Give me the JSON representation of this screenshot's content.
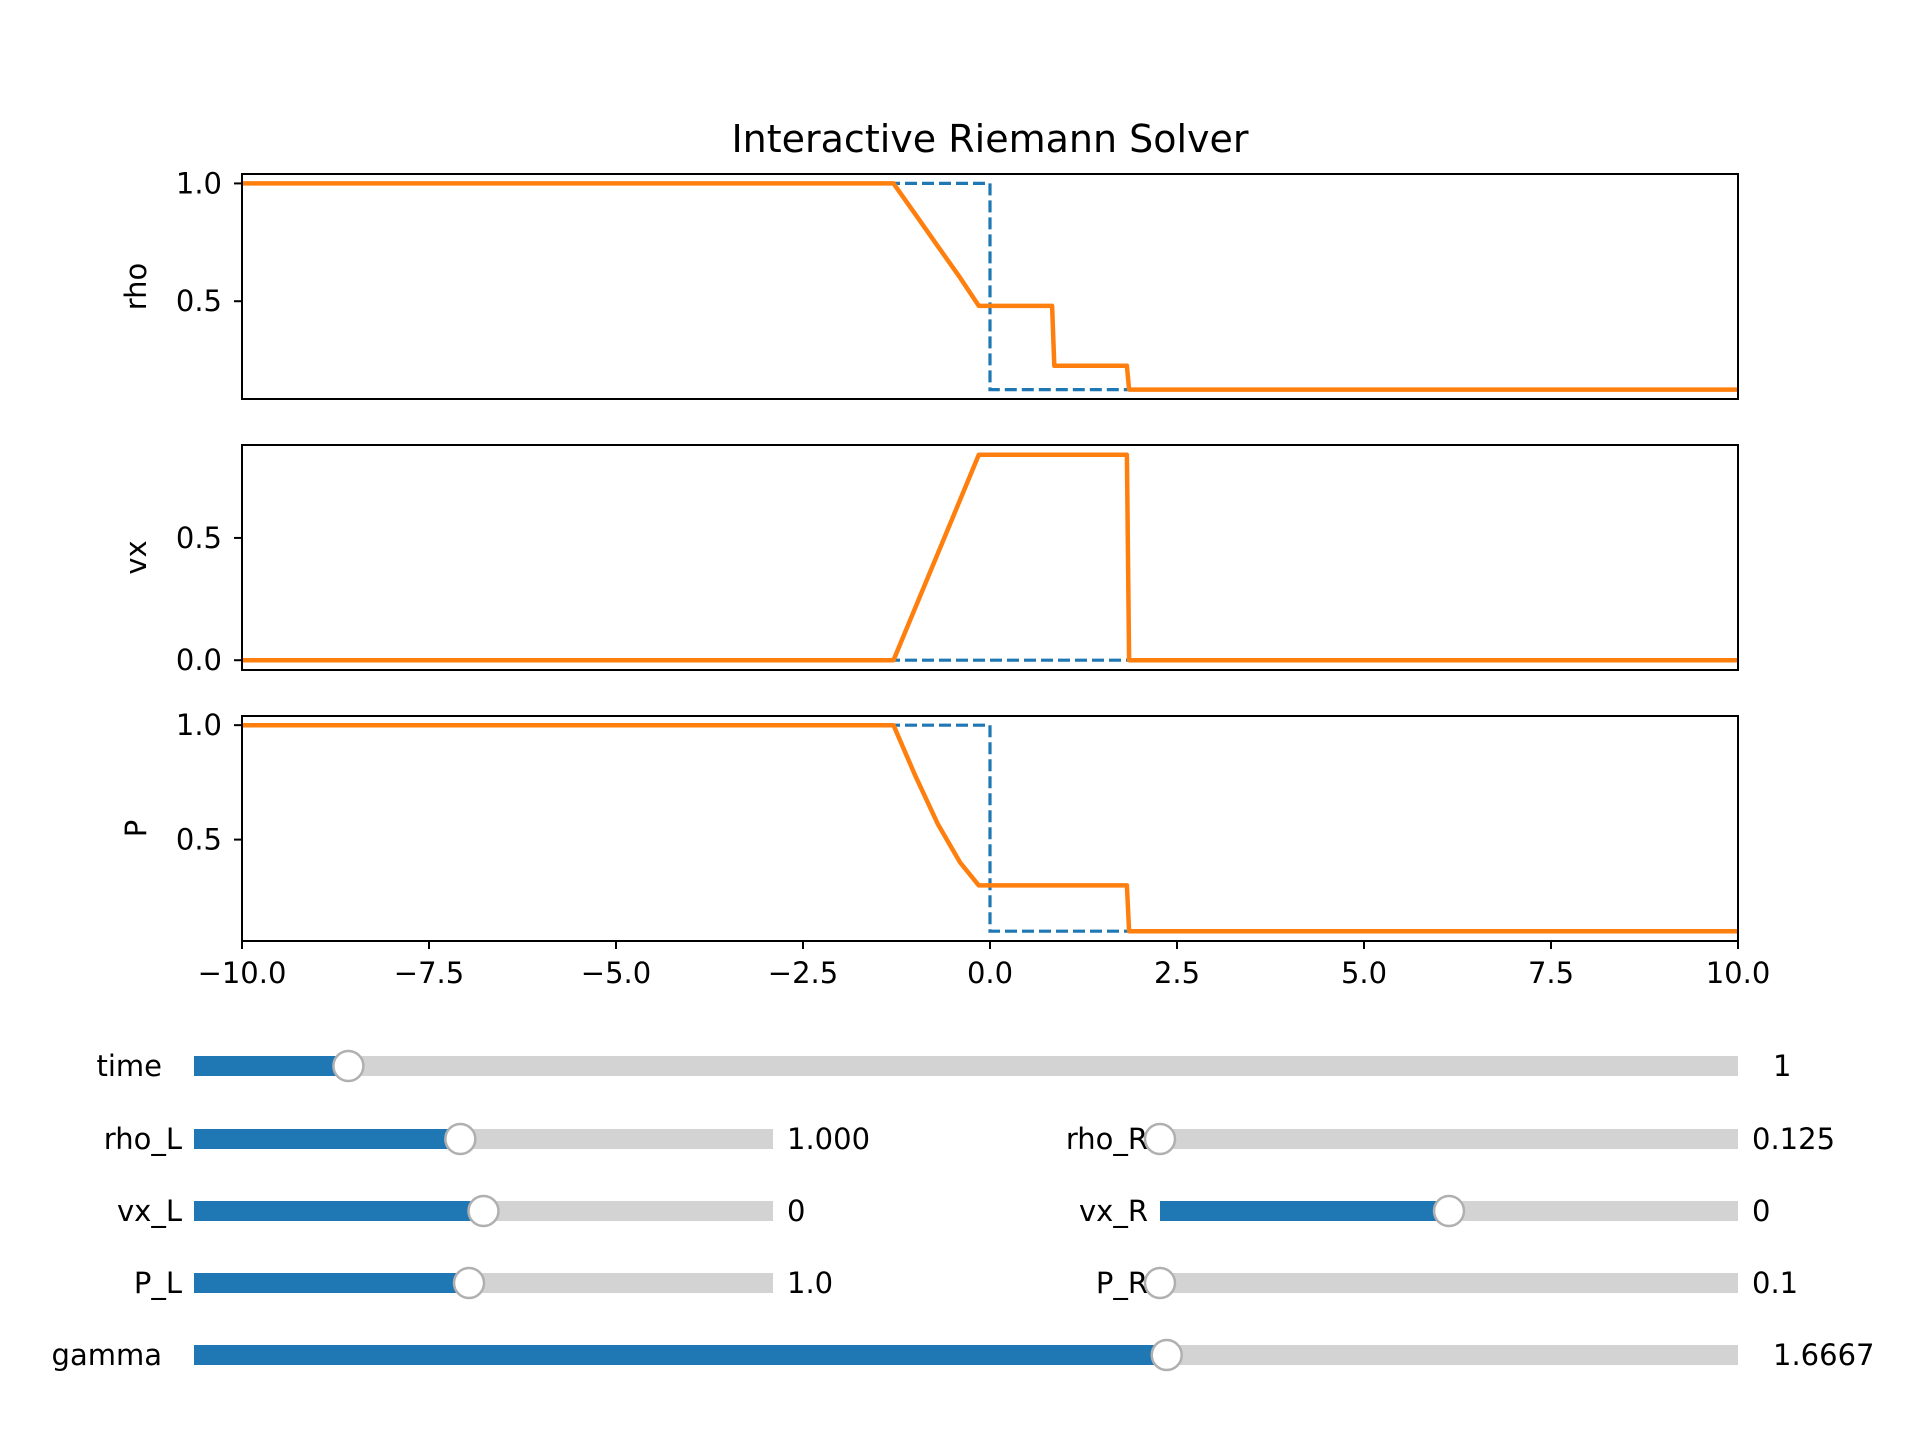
{
  "chart_data": {
    "type": "line",
    "title": "Interactive Riemann Solver",
    "xlim": [
      -10.0,
      10.0
    ],
    "xticks": [
      -10.0,
      -7.5,
      -5.0,
      -2.5,
      0.0,
      2.5,
      5.0,
      7.5,
      10.0
    ],
    "xtick_labels": [
      "−10.0",
      "−7.5",
      "−5.0",
      "−2.5",
      "0.0",
      "2.5",
      "5.0",
      "7.5",
      "10.0"
    ],
    "series_colors": {
      "initial": "#1f77b4",
      "solution": "#ff7f0e"
    },
    "panels": [
      {
        "ylabel": "rho",
        "ylim": [
          0.085,
          1.04
        ],
        "yticks": [
          1.0,
          0.5
        ],
        "ytick_labels": [
          "1.0",
          "0.5"
        ],
        "initial": {
          "x": [
            -10,
            0,
            0,
            10
          ],
          "y": [
            1.0,
            1.0,
            0.125,
            0.125
          ]
        },
        "solution": {
          "x": [
            -10,
            -1.29,
            -1.0,
            -0.7,
            -0.4,
            -0.15,
            0.83,
            0.86,
            1.83,
            1.86,
            10
          ],
          "y": [
            1.0,
            1.0,
            0.87,
            0.735,
            0.6,
            0.48,
            0.48,
            0.226,
            0.226,
            0.125,
            0.125
          ]
        }
      },
      {
        "ylabel": "vx",
        "ylim": [
          -0.04,
          0.88
        ],
        "yticks": [
          0.5,
          0.0
        ],
        "ytick_labels": [
          "0.5",
          "0.0"
        ],
        "initial": {
          "x": [
            -10,
            10
          ],
          "y": [
            0.0,
            0.0
          ]
        },
        "solution": {
          "x": [
            -10,
            -1.29,
            -0.15,
            1.83,
            1.86,
            10
          ],
          "y": [
            0.0,
            0.0,
            0.84,
            0.84,
            0.0,
            0.0
          ]
        }
      },
      {
        "ylabel": "P",
        "ylim": [
          0.057,
          1.04
        ],
        "yticks": [
          1.0,
          0.5
        ],
        "ytick_labels": [
          "1.0",
          "0.5"
        ],
        "initial": {
          "x": [
            -10,
            0,
            0,
            10
          ],
          "y": [
            1.0,
            1.0,
            0.1,
            0.1
          ]
        },
        "solution": {
          "x": [
            -10,
            -1.29,
            -1.0,
            -0.7,
            -0.4,
            -0.15,
            1.83,
            1.86,
            10
          ],
          "y": [
            1.0,
            1.0,
            0.78,
            0.57,
            0.4,
            0.3,
            0.3,
            0.1,
            0.1
          ]
        }
      }
    ]
  },
  "sliders": [
    {
      "id": "time",
      "label": "time",
      "fraction": 0.1,
      "value_text": "1"
    },
    {
      "id": "rho_L",
      "label": "rho_L",
      "fraction": 0.46,
      "value_text": "1.000"
    },
    {
      "id": "rho_R",
      "label": "rho_R",
      "fraction": 0.0,
      "value_text": "0.125"
    },
    {
      "id": "vx_L",
      "label": "vx_L",
      "fraction": 0.5,
      "value_text": "0"
    },
    {
      "id": "vx_R",
      "label": "vx_R",
      "fraction": 0.5,
      "value_text": "0"
    },
    {
      "id": "P_L",
      "label": "P_L",
      "fraction": 0.475,
      "value_text": "1.0"
    },
    {
      "id": "P_R",
      "label": "P_R",
      "fraction": 0.0,
      "value_text": "0.1"
    },
    {
      "id": "gamma",
      "label": "gamma",
      "fraction": 0.63,
      "value_text": "1.6667"
    }
  ],
  "slider_colors": {
    "fill": "#1f77b4",
    "track": "#d3d3d3",
    "knob_fill": "#ffffff",
    "knob_stroke": "#b0b0b0"
  }
}
